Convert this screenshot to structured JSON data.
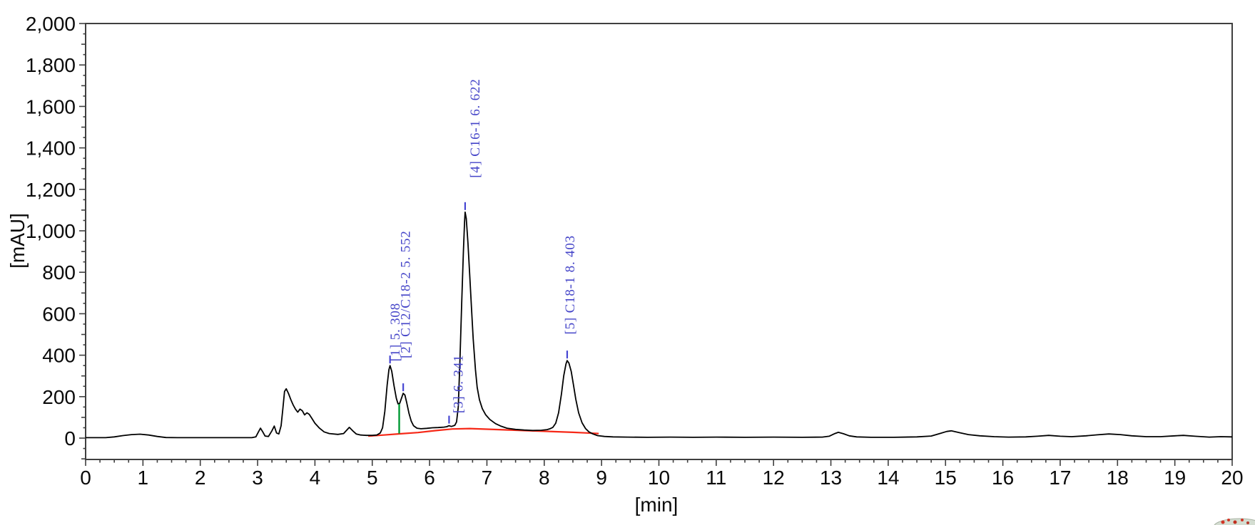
{
  "chart_data": {
    "type": "line",
    "title": "",
    "xlabel": "[min]",
    "ylabel": "[mAU]",
    "xlim": [
      0,
      20
    ],
    "ylim": [
      -100,
      2000
    ],
    "grid": false,
    "legend": "none",
    "x_major_ticks": [
      {
        "v": 0,
        "label": "0"
      },
      {
        "v": 1,
        "label": "1"
      },
      {
        "v": 2,
        "label": "2"
      },
      {
        "v": 3,
        "label": "3"
      },
      {
        "v": 4,
        "label": "4"
      },
      {
        "v": 5,
        "label": "5"
      },
      {
        "v": 6,
        "label": "6"
      },
      {
        "v": 7,
        "label": "7"
      },
      {
        "v": 8,
        "label": "8"
      },
      {
        "v": 9,
        "label": "9"
      },
      {
        "v": 10,
        "label": "10"
      },
      {
        "v": 11,
        "label": "11"
      },
      {
        "v": 12,
        "label": "12"
      },
      {
        "v": 13,
        "label": "13"
      },
      {
        "v": 14,
        "label": "14"
      },
      {
        "v": 15,
        "label": "15"
      },
      {
        "v": 16,
        "label": "16"
      },
      {
        "v": 17,
        "label": "17"
      },
      {
        "v": 18,
        "label": "18"
      },
      {
        "v": 19,
        "label": "19"
      },
      {
        "v": 20,
        "label": "20"
      }
    ],
    "x_minor_step": 0.25,
    "y_major_ticks": [
      {
        "v": 0,
        "label": "0"
      },
      {
        "v": 200,
        "label": "200"
      },
      {
        "v": 400,
        "label": "400"
      },
      {
        "v": 600,
        "label": "600"
      },
      {
        "v": 800,
        "label": "800"
      },
      {
        "v": 1000,
        "label": "1,000"
      },
      {
        "v": 1200,
        "label": "1,200"
      },
      {
        "v": 1400,
        "label": "1,400"
      },
      {
        "v": 1600,
        "label": "1,600"
      },
      {
        "v": 1800,
        "label": "1,800"
      },
      {
        "v": 2000,
        "label": "2,000"
      }
    ],
    "y_minor_step": 50,
    "colors": {
      "trace": "#000000",
      "baseline": "#f62817",
      "separator": "#009933",
      "peak_marker": "#4646d2",
      "peak_label": "#4444c8",
      "axis": "#3f3f3f",
      "tick_text": "#0a0a0a"
    },
    "series": [
      {
        "name": "detector-signal",
        "points": [
          [
            0,
            2
          ],
          [
            0.35,
            2
          ],
          [
            0.5,
            6
          ],
          [
            0.65,
            12
          ],
          [
            0.8,
            17
          ],
          [
            0.95,
            19
          ],
          [
            1.1,
            15
          ],
          [
            1.25,
            8
          ],
          [
            1.4,
            3
          ],
          [
            1.6,
            2
          ],
          [
            2.9,
            2
          ],
          [
            2.97,
            6
          ],
          [
            3.01,
            28
          ],
          [
            3.05,
            48
          ],
          [
            3.09,
            30
          ],
          [
            3.13,
            10
          ],
          [
            3.19,
            8
          ],
          [
            3.25,
            35
          ],
          [
            3.29,
            58
          ],
          [
            3.33,
            25
          ],
          [
            3.37,
            20
          ],
          [
            3.41,
            60
          ],
          [
            3.44,
            140
          ],
          [
            3.47,
            225
          ],
          [
            3.5,
            238
          ],
          [
            3.54,
            215
          ],
          [
            3.58,
            185
          ],
          [
            3.62,
            160
          ],
          [
            3.66,
            140
          ],
          [
            3.7,
            125
          ],
          [
            3.74,
            140
          ],
          [
            3.78,
            132
          ],
          [
            3.82,
            112
          ],
          [
            3.86,
            122
          ],
          [
            3.9,
            115
          ],
          [
            3.94,
            98
          ],
          [
            4,
            72
          ],
          [
            4.08,
            48
          ],
          [
            4.16,
            30
          ],
          [
            4.25,
            22
          ],
          [
            4.4,
            18
          ],
          [
            4.5,
            22
          ],
          [
            4.56,
            40
          ],
          [
            4.6,
            52
          ],
          [
            4.66,
            35
          ],
          [
            4.72,
            20
          ],
          [
            4.8,
            15
          ],
          [
            4.9,
            13
          ],
          [
            5,
            13
          ],
          [
            5.08,
            15
          ],
          [
            5.14,
            25
          ],
          [
            5.18,
            50
          ],
          [
            5.22,
            130
          ],
          [
            5.26,
            255
          ],
          [
            5.29,
            330
          ],
          [
            5.31,
            350
          ],
          [
            5.34,
            322
          ],
          [
            5.38,
            252
          ],
          [
            5.42,
            192
          ],
          [
            5.45,
            165
          ],
          [
            5.48,
            168
          ],
          [
            5.52,
            200
          ],
          [
            5.54,
            216
          ],
          [
            5.57,
            208
          ],
          [
            5.6,
            172
          ],
          [
            5.64,
            120
          ],
          [
            5.68,
            82
          ],
          [
            5.72,
            60
          ],
          [
            5.78,
            48
          ],
          [
            5.85,
            45
          ],
          [
            5.95,
            47
          ],
          [
            6.05,
            50
          ],
          [
            6.15,
            51
          ],
          [
            6.25,
            53
          ],
          [
            6.3,
            55
          ],
          [
            6.34,
            60
          ],
          [
            6.38,
            56
          ],
          [
            6.44,
            62
          ],
          [
            6.47,
            78
          ],
          [
            6.5,
            150
          ],
          [
            6.53,
            380
          ],
          [
            6.56,
            650
          ],
          [
            6.59,
            900
          ],
          [
            6.61,
            1040
          ],
          [
            6.62,
            1090
          ],
          [
            6.64,
            1060
          ],
          [
            6.67,
            940
          ],
          [
            6.7,
            790
          ],
          [
            6.73,
            630
          ],
          [
            6.76,
            480
          ],
          [
            6.8,
            330
          ],
          [
            6.83,
            245
          ],
          [
            6.87,
            185
          ],
          [
            6.92,
            142
          ],
          [
            6.98,
            112
          ],
          [
            7.05,
            90
          ],
          [
            7.15,
            70
          ],
          [
            7.25,
            57
          ],
          [
            7.35,
            48
          ],
          [
            7.5,
            42
          ],
          [
            7.65,
            39
          ],
          [
            7.8,
            37
          ],
          [
            7.95,
            38
          ],
          [
            8.05,
            41
          ],
          [
            8.1,
            45
          ],
          [
            8.15,
            52
          ],
          [
            8.2,
            72
          ],
          [
            8.25,
            122
          ],
          [
            8.3,
            212
          ],
          [
            8.34,
            300
          ],
          [
            8.38,
            358
          ],
          [
            8.4,
            374
          ],
          [
            8.43,
            362
          ],
          [
            8.47,
            322
          ],
          [
            8.51,
            256
          ],
          [
            8.55,
            188
          ],
          [
            8.6,
            122
          ],
          [
            8.66,
            74
          ],
          [
            8.72,
            46
          ],
          [
            8.78,
            30
          ],
          [
            8.85,
            20
          ],
          [
            8.93,
            12
          ],
          [
            9.05,
            8
          ],
          [
            9.2,
            6
          ],
          [
            9.45,
            5
          ],
          [
            9.8,
            4
          ],
          [
            10.2,
            5
          ],
          [
            10.6,
            4
          ],
          [
            11,
            5
          ],
          [
            11.5,
            4
          ],
          [
            12,
            5
          ],
          [
            12.5,
            4
          ],
          [
            12.85,
            5
          ],
          [
            12.97,
            9
          ],
          [
            13.07,
            22
          ],
          [
            13.13,
            28
          ],
          [
            13.22,
            21
          ],
          [
            13.32,
            11
          ],
          [
            13.45,
            6
          ],
          [
            13.7,
            4
          ],
          [
            14.1,
            4
          ],
          [
            14.5,
            6
          ],
          [
            14.75,
            10
          ],
          [
            14.9,
            22
          ],
          [
            15.02,
            32
          ],
          [
            15.1,
            35
          ],
          [
            15.25,
            26
          ],
          [
            15.4,
            17
          ],
          [
            15.6,
            11
          ],
          [
            15.85,
            7
          ],
          [
            16.1,
            5
          ],
          [
            16.4,
            6
          ],
          [
            16.6,
            9
          ],
          [
            16.8,
            13
          ],
          [
            17,
            9
          ],
          [
            17.2,
            7
          ],
          [
            17.45,
            11
          ],
          [
            17.65,
            16
          ],
          [
            17.85,
            20
          ],
          [
            18.05,
            17
          ],
          [
            18.25,
            11
          ],
          [
            18.5,
            7
          ],
          [
            18.75,
            7
          ],
          [
            19,
            11
          ],
          [
            19.15,
            13
          ],
          [
            19.35,
            9
          ],
          [
            19.6,
            5
          ],
          [
            19.8,
            7
          ],
          [
            20,
            6
          ]
        ]
      }
    ],
    "integration_baseline": {
      "points": [
        [
          4.93,
          10
        ],
        [
          5.2,
          15
        ],
        [
          5.5,
          21
        ],
        [
          5.8,
          27
        ],
        [
          6.1,
          36
        ],
        [
          6.4,
          44
        ],
        [
          6.7,
          46
        ],
        [
          7,
          43
        ],
        [
          7.3,
          40
        ],
        [
          7.6,
          37
        ],
        [
          7.9,
          34
        ],
        [
          8.2,
          31
        ],
        [
          8.5,
          28
        ],
        [
          8.75,
          25
        ],
        [
          8.95,
          22
        ]
      ]
    },
    "peak_separator": {
      "x": 5.47,
      "y_bottom": 22,
      "y_top": 165
    },
    "peaks": [
      {
        "number": 1,
        "compound": "",
        "retention_time": "5.308",
        "display_label": "[1]  5. 308",
        "apex_x": 5.31,
        "apex_y": 350,
        "label_x": 5.39,
        "label_bottom_y": 370
      },
      {
        "number": 2,
        "compound": "C12/C18-2",
        "retention_time": "5.552",
        "display_label": "[2] C12/C18-2 5. 552",
        "apex_x": 5.54,
        "apex_y": 216,
        "label_x": 5.57,
        "label_bottom_y": 385
      },
      {
        "number": 3,
        "compound": "",
        "retention_time": "6.341",
        "display_label": "[3]  6. 341",
        "apex_x": 6.34,
        "apex_y": 60,
        "label_x": 6.49,
        "label_bottom_y": 120
      },
      {
        "number": 4,
        "compound": "C16-1",
        "retention_time": "6.622",
        "display_label": "[4] C16-1 6. 622",
        "apex_x": 6.62,
        "apex_y": 1090,
        "label_x": 6.78,
        "label_bottom_y": 1255
      },
      {
        "number": 5,
        "compound": "C18-1",
        "retention_time": "8.403",
        "display_label": "[5] C18-1 8. 403",
        "apex_x": 8.4,
        "apex_y": 374,
        "label_x": 8.44,
        "label_bottom_y": 500
      }
    ]
  }
}
